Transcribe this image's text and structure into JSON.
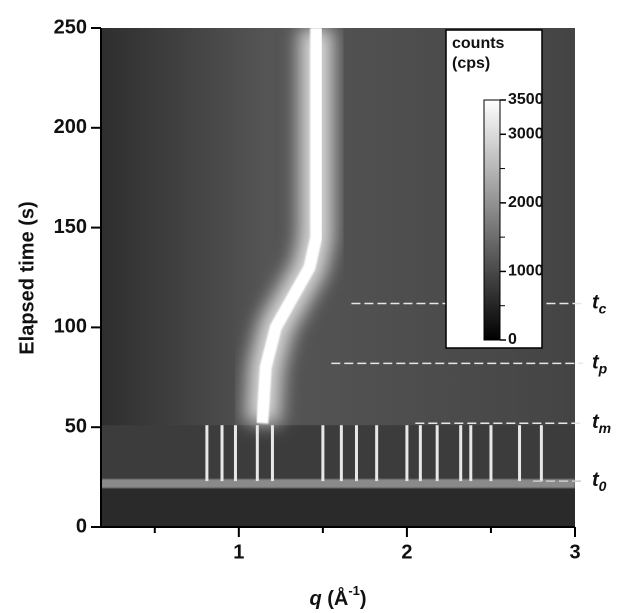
{
  "chart_data": {
    "type": "heatmap",
    "ylabel": "Elapsed time (s)",
    "xlabel": {
      "symbol": "q",
      "unit": "(Å",
      "exp": "-1",
      "close": ")"
    },
    "xlim": [
      0.18,
      3
    ],
    "xticks": [
      1,
      2,
      3
    ],
    "xminor": [
      0.5,
      1.5,
      2.5
    ],
    "ylim": [
      0,
      250
    ],
    "yticks": [
      0,
      50,
      100,
      150,
      200,
      250
    ],
    "bright_track": {
      "t": [
        52,
        80,
        100,
        115,
        130,
        145,
        250
      ],
      "q": [
        1.14,
        1.16,
        1.22,
        1.32,
        1.42,
        1.46,
        1.46
      ]
    },
    "bragg": {
      "q": [
        0.81,
        0.9,
        0.98,
        1.11,
        1.2,
        1.5,
        1.61,
        1.7,
        1.82,
        2.0,
        2.08,
        2.18,
        2.32,
        2.38,
        2.5,
        2.67,
        2.8
      ],
      "t_top": 51,
      "t_bottom": 23
    },
    "markers": [
      {
        "text": "t",
        "sub": "c",
        "t": 112,
        "q_start": 1.67
      },
      {
        "text": "t",
        "sub": "p",
        "t": 82,
        "q_start": 1.55
      },
      {
        "text": "t",
        "sub": "m",
        "t": 52,
        "q_start": 2.05
      },
      {
        "text": "t",
        "sub": "0",
        "t": 23,
        "q_start": 2.75
      }
    ],
    "colorbar": {
      "title": [
        "counts",
        "(cps)"
      ],
      "lim": [
        0,
        3500
      ],
      "ticks": [
        0,
        1000,
        2000,
        3000,
        3500
      ],
      "minor": [
        500,
        1500,
        2500
      ]
    }
  }
}
